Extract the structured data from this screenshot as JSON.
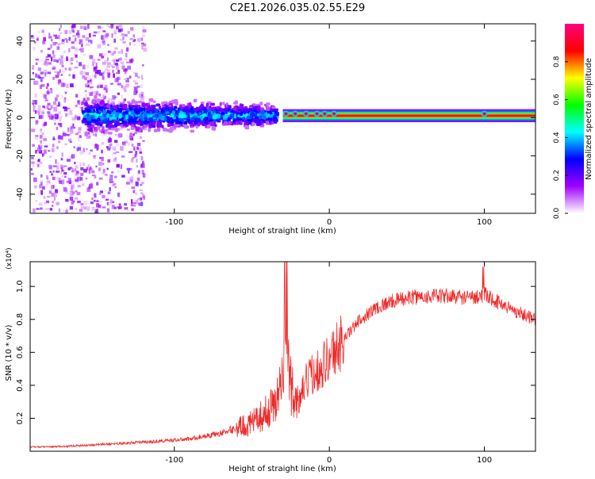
{
  "title": "C2E1.2026.035.02.55.E29",
  "chart_data": [
    {
      "type": "heatmap",
      "xlabel": "Height of straight line (km)",
      "ylabel": "Frequency (Hz)",
      "xlim": [
        -193,
        133
      ],
      "ylim": [
        -50,
        49
      ],
      "xticks": [
        -100,
        0,
        100
      ],
      "xtick_labels": [
        "-100",
        "0",
        "100"
      ],
      "yticks": [
        -40,
        -20,
        0,
        20,
        40
      ],
      "ytick_labels": [
        "-40",
        "-20",
        "0",
        "20",
        "40"
      ],
      "colorbar": {
        "label": "Normalized spectral amplitude",
        "range": [
          0,
          1
        ],
        "ticks": [
          0.0,
          0.2,
          0.4,
          0.6,
          0.8
        ],
        "tick_labels": [
          "0.0",
          "0.2",
          "0.4",
          "0.6",
          "0.8"
        ],
        "colors": [
          "#ffffff",
          "#a000ff",
          "#0000ff",
          "#00ffff",
          "#00ff00",
          "#ffff00",
          "#ff0000",
          "#ff0080"
        ]
      },
      "regions": [
        {
          "name": "scattered noise",
          "x": [
            -193,
            -120
          ],
          "freq_spread_hz": 49,
          "amplitude": 0.1
        },
        {
          "name": "broad band",
          "x": [
            -160,
            -35
          ],
          "freq_center_hz": 2,
          "freq_width_hz": 14,
          "amplitude": 0.4
        },
        {
          "name": "narrow line",
          "x": [
            -30,
            133
          ],
          "freq_center_hz": 1,
          "freq_width_hz": 3,
          "amplitude": 0.95
        }
      ]
    },
    {
      "type": "line",
      "xlabel": "Height of straight line (km)",
      "ylabel": "SNR (10 * v/v)",
      "y_multiplier": "(x10⁴)",
      "xlim": [
        -193,
        133
      ],
      "ylim": [
        0,
        1.15
      ],
      "xticks": [
        -100,
        0,
        100
      ],
      "xtick_labels": [
        "-100",
        "0",
        "100"
      ],
      "yticks": [
        0.2,
        0.4,
        0.6,
        0.8,
        1.0
      ],
      "ytick_labels": [
        "0.2",
        "0.4",
        "0.6",
        "0.8",
        "1.0"
      ],
      "color": "#ee2a2a",
      "x": [
        -193,
        -170,
        -150,
        -130,
        -110,
        -90,
        -70,
        -50,
        -40,
        -35,
        -30,
        -28,
        -25,
        -20,
        -15,
        -10,
        -5,
        0,
        10,
        20,
        30,
        40,
        50,
        60,
        70,
        80,
        90,
        100,
        110,
        120,
        133
      ],
      "y": [
        0.025,
        0.03,
        0.04,
        0.05,
        0.06,
        0.075,
        0.11,
        0.17,
        0.24,
        0.3,
        0.42,
        0.75,
        0.4,
        0.28,
        0.42,
        0.48,
        0.52,
        0.57,
        0.69,
        0.8,
        0.87,
        0.91,
        0.93,
        0.94,
        0.94,
        0.94,
        0.93,
        0.95,
        0.9,
        0.85,
        0.8
      ]
    }
  ]
}
